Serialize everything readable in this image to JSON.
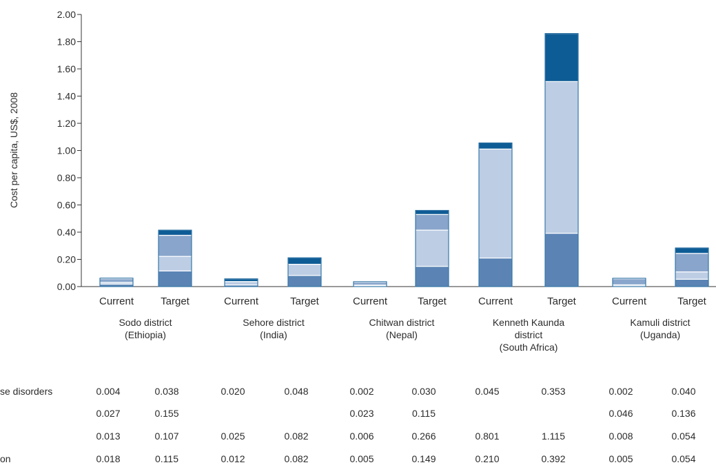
{
  "chart_data": {
    "type": "bar",
    "stacked": true,
    "ylabel": "Cost per capita, US$, 2008",
    "ylim": [
      0,
      2.0
    ],
    "yticks": [
      "0.00",
      "0.20",
      "0.40",
      "0.60",
      "0.80",
      "1.00",
      "1.20",
      "1.40",
      "1.60",
      "1.80",
      "2.00"
    ],
    "bar_labels": [
      "Current",
      "Target",
      "Current",
      "Target",
      "Current",
      "Target",
      "Current",
      "Target",
      "Current",
      "Target"
    ],
    "groups": [
      {
        "label_lines": [
          "Sodo district",
          "(Ethiopia)"
        ]
      },
      {
        "label_lines": [
          "Sehore district",
          "(India)"
        ]
      },
      {
        "label_lines": [
          "Chitwan district",
          "(Nepal)"
        ]
      },
      {
        "label_lines": [
          "Kenneth Kaunda",
          "district",
          "(South Africa)"
        ]
      },
      {
        "label_lines": [
          "Kamuli district",
          "(Uganda)"
        ]
      }
    ],
    "series": [
      {
        "name": "on",
        "color": "#5b84b5",
        "values": [
          0.018,
          0.115,
          0.012,
          0.082,
          0.005,
          0.149,
          0.21,
          0.392,
          0.005,
          0.054
        ],
        "display": [
          "0.018",
          "0.115",
          "0.012",
          "0.082",
          "0.005",
          "0.149",
          "0.210",
          "0.392",
          "0.005",
          "0.054"
        ]
      },
      {
        "name": "",
        "color": "#bccde4",
        "values": [
          0.013,
          0.107,
          0.025,
          0.082,
          0.006,
          0.266,
          0.801,
          1.115,
          0.008,
          0.054
        ],
        "display": [
          "0.013",
          "0.107",
          "0.025",
          "0.082",
          "0.006",
          "0.266",
          "0.801",
          "1.115",
          "0.008",
          "0.054"
        ]
      },
      {
        "name": "",
        "color": "#89a5cb",
        "values": [
          0.027,
          0.155,
          null,
          null,
          0.023,
          0.115,
          null,
          null,
          0.046,
          0.136
        ],
        "display": [
          "0.027",
          "0.155",
          "",
          "",
          "0.023",
          "0.115",
          "",
          "",
          "0.046",
          "0.136"
        ]
      },
      {
        "name": "se disorders",
        "color": "#0e5c96",
        "values": [
          0.004,
          0.038,
          0.02,
          0.048,
          0.002,
          0.03,
          0.045,
          0.353,
          0.002,
          0.04
        ],
        "display": [
          "0.004",
          "0.038",
          "0.020",
          "0.048",
          "0.002",
          "0.030",
          "0.045",
          "0.353",
          "0.002",
          "0.040"
        ]
      }
    ],
    "table_rows": [
      {
        "label": "se disorders",
        "values": [
          "0.004",
          "0.038",
          "0.020",
          "0.048",
          "0.002",
          "0.030",
          "0.045",
          "0.353",
          "0.002",
          "0.040"
        ]
      },
      {
        "label": "",
        "values": [
          "0.027",
          "0.155",
          "",
          "",
          "0.023",
          "0.115",
          "",
          "",
          "0.046",
          "0.136"
        ]
      },
      {
        "label": "",
        "values": [
          "0.013",
          "0.107",
          "0.025",
          "0.082",
          "0.006",
          "0.266",
          "0.801",
          "1.115",
          "0.008",
          "0.054"
        ]
      },
      {
        "label": "on",
        "values": [
          "0.018",
          "0.115",
          "0.012",
          "0.082",
          "0.005",
          "0.149",
          "0.210",
          "0.392",
          "0.005",
          "0.054"
        ]
      }
    ]
  }
}
